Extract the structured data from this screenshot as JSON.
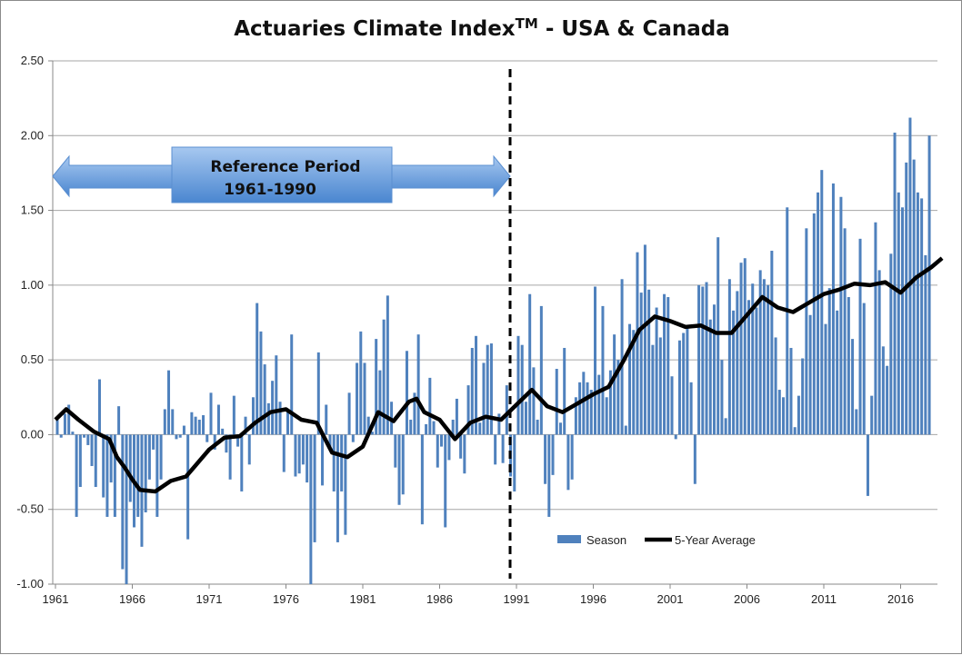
{
  "chart_data": {
    "type": "bar+line",
    "title": "Actuaries Climate Index",
    "title_superscript": "TM",
    "title_suffix": " - USA & Canada",
    "xlim": [
      1961,
      2019
    ],
    "ylim": [
      -1.0,
      2.5
    ],
    "grid": true,
    "x_tick_labels": [
      "1961",
      "1966",
      "1971",
      "1976",
      "1981",
      "1986",
      "1991",
      "1996",
      "2001",
      "2006",
      "2011",
      "2016"
    ],
    "y_tick_labels": [
      "-1.00",
      "-0.50",
      "0.00",
      "0.50",
      "1.00",
      "1.50",
      "2.00",
      "2.50"
    ],
    "legend_position": "bottom-right",
    "annotation": {
      "line1": "Reference Period",
      "line2": "1961-1990",
      "start": 1961,
      "end": 1991
    },
    "reference_line_x": 1991,
    "colors": {
      "bar": "#4f81bd",
      "line": "#000000"
    },
    "series": [
      {
        "name": "Season",
        "type": "bar",
        "start": 1961,
        "step": 0.25,
        "values": [
          0.1,
          -0.02,
          0.14,
          0.2,
          0.02,
          -0.55,
          -0.35,
          -0.02,
          -0.07,
          -0.21,
          -0.35,
          0.37,
          -0.42,
          -0.55,
          -0.32,
          -0.55,
          0.19,
          -0.9,
          -1.0,
          -0.45,
          -0.62,
          -0.55,
          -0.75,
          -0.52,
          -0.3,
          -0.1,
          -0.55,
          -0.3,
          0.17,
          0.43,
          0.17,
          -0.03,
          -0.02,
          0.06,
          -0.7,
          0.15,
          0.12,
          0.1,
          0.13,
          -0.05,
          0.28,
          -0.1,
          0.2,
          0.04,
          -0.12,
          -0.3,
          0.26,
          -0.08,
          -0.38,
          0.12,
          -0.2,
          0.25,
          0.88,
          0.69,
          0.47,
          0.21,
          0.36,
          0.53,
          0.22,
          -0.25,
          0.15,
          0.67,
          -0.28,
          -0.26,
          -0.2,
          -0.32,
          -1.0,
          -0.72,
          0.55,
          -0.34,
          0.2,
          -0.1,
          -0.38,
          -0.72,
          -0.38,
          -0.67,
          0.28,
          -0.05,
          0.48,
          0.69,
          0.48,
          0.12,
          0.02,
          0.64,
          0.43,
          0.77,
          0.93,
          0.22,
          -0.22,
          -0.47,
          -0.4,
          0.56,
          0.1,
          0.28,
          0.67,
          -0.6,
          0.07,
          0.38,
          0.09,
          -0.22,
          -0.08,
          -0.62,
          -0.17,
          0.1,
          0.24,
          -0.16,
          -0.26,
          0.33,
          0.58,
          0.66,
          0.08,
          0.48,
          0.6,
          0.61,
          -0.2,
          0.14,
          -0.19,
          0.33,
          -0.28,
          -0.38,
          0.66,
          0.6,
          0.22,
          0.94,
          0.45,
          0.1,
          0.86,
          -0.33,
          -0.55,
          -0.27,
          0.44,
          0.08,
          0.58,
          -0.37,
          -0.3,
          0.25,
          0.35,
          0.42,
          0.35,
          0.3,
          0.99,
          0.4,
          0.86,
          0.25,
          0.43,
          0.67,
          0.5,
          1.04,
          0.06,
          0.74,
          0.7,
          1.22,
          0.95,
          1.27,
          0.97,
          0.6,
          0.85,
          0.65,
          0.94,
          0.92,
          0.39,
          -0.03,
          0.63,
          0.68,
          0.72,
          0.35,
          -0.33,
          1.0,
          0.99,
          1.02,
          0.77,
          0.87,
          1.32,
          0.5,
          0.11,
          1.04,
          0.83,
          0.96,
          1.15,
          1.18,
          0.9,
          1.01,
          0.85,
          1.1,
          1.04,
          1.0,
          1.23,
          0.65,
          0.3,
          0.25,
          1.52,
          0.58,
          0.05,
          0.26,
          0.51,
          1.38,
          0.8,
          1.48,
          1.62,
          1.77,
          0.74,
          0.98,
          1.68,
          0.83,
          1.59,
          1.38,
          0.92,
          0.64,
          0.17,
          1.31,
          0.88,
          -0.41,
          0.26,
          1.42,
          1.1,
          0.59,
          0.46,
          1.21,
          2.02,
          1.62,
          1.52,
          1.82,
          2.12,
          1.84,
          1.62,
          1.58,
          1.2,
          2.0
        ]
      },
      {
        "name": "5-Year Average",
        "type": "line",
        "x": [
          1961,
          1961.7,
          1962.5,
          1963.5,
          1964.5,
          1965,
          1965.5,
          1966,
          1966.5,
          1967.5,
          1968.5,
          1969.5,
          1970,
          1971,
          1972,
          1973,
          1974,
          1975,
          1976,
          1977,
          1978,
          1979,
          1980,
          1981,
          1982,
          1983,
          1984,
          1984.5,
          1985,
          1986,
          1987,
          1988,
          1989,
          1990,
          1991,
          1992,
          1993,
          1994,
          1995,
          1996,
          1997,
          1998,
          1999,
          2000,
          2001,
          2002,
          2003,
          2004,
          2005,
          2006,
          2007,
          2008,
          2009,
          2010,
          2011,
          2012,
          2013,
          2014,
          2015,
          2016,
          2017,
          2018,
          2018.7
        ],
        "y": [
          0.1,
          0.17,
          0.1,
          0.02,
          -0.03,
          -0.15,
          -0.22,
          -0.3,
          -0.37,
          -0.38,
          -0.31,
          -0.28,
          -0.22,
          -0.1,
          -0.02,
          -0.01,
          0.08,
          0.15,
          0.17,
          0.1,
          0.08,
          -0.12,
          -0.15,
          -0.08,
          0.15,
          0.09,
          0.22,
          0.24,
          0.15,
          0.1,
          -0.03,
          0.08,
          0.12,
          0.1,
          0.2,
          0.3,
          0.19,
          0.15,
          0.21,
          0.27,
          0.32,
          0.5,
          0.7,
          0.79,
          0.76,
          0.72,
          0.73,
          0.68,
          0.68,
          0.8,
          0.92,
          0.85,
          0.82,
          0.88,
          0.94,
          0.97,
          1.01,
          1.0,
          1.02,
          0.95,
          1.05,
          1.12,
          1.18
        ]
      }
    ]
  }
}
